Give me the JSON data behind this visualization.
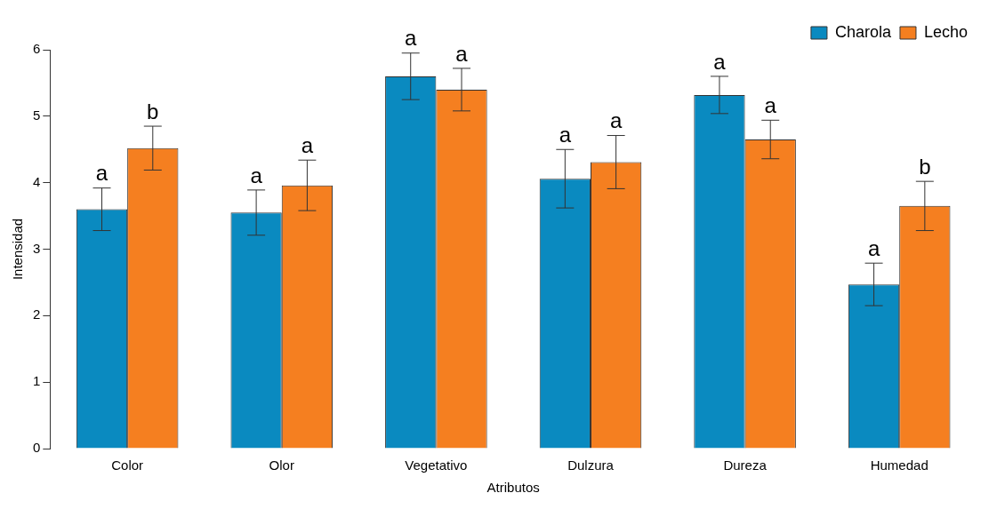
{
  "chart_data": {
    "type": "bar",
    "xlabel": "Atributos",
    "ylabel": "Intensidad",
    "categories": [
      "Color",
      "Olor",
      "Vegetativo",
      "Dulzura",
      "Dureza",
      "Humedad"
    ],
    "series": [
      {
        "name": "Charola",
        "color": "#0a8ac0",
        "values": [
          3.6,
          3.55,
          5.6,
          4.06,
          5.32,
          2.47
        ],
        "errors": [
          0.32,
          0.34,
          0.35,
          0.44,
          0.28,
          0.32
        ],
        "value_labels": [
          "a",
          "a",
          "a",
          "a",
          "a",
          "a"
        ]
      },
      {
        "name": "Lecho",
        "color": "#f57f20",
        "values": [
          4.52,
          3.96,
          5.4,
          4.31,
          4.65,
          3.65
        ],
        "errors": [
          0.33,
          0.38,
          0.32,
          0.4,
          0.29,
          0.37
        ],
        "value_labels": [
          "b",
          "a",
          "a",
          "a",
          "a",
          "b"
        ]
      }
    ],
    "ylim": [
      0,
      6
    ],
    "yticks": [
      0,
      1,
      2,
      3,
      4,
      5,
      6
    ],
    "grid": false,
    "legend": "top right"
  }
}
